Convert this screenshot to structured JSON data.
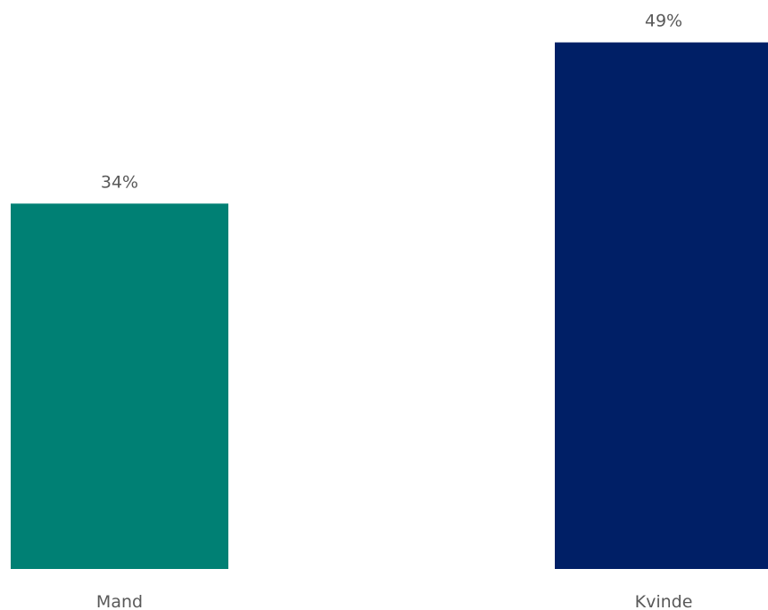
{
  "chart_data": {
    "type": "bar",
    "categories": [
      "Mand",
      "Kvinde"
    ],
    "values": [
      34,
      49
    ],
    "value_labels": [
      "34%",
      "49%"
    ],
    "bar_colors": [
      "#008074",
      "#001F66"
    ],
    "title": "",
    "xlabel": "",
    "ylabel": "",
    "ylim": [
      0,
      50
    ],
    "grid": false,
    "legend": "none"
  }
}
